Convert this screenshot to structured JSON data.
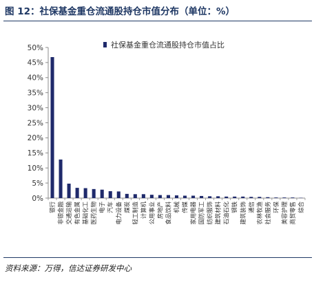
{
  "title": "图 12：社保基金重仓流通股持仓市值分布（单位：%）",
  "source": "资料来源：万得，信达证券研发中心",
  "colors": {
    "bar": "#1f2a6b",
    "axis": "#8c8c8c",
    "title": "#1f3864"
  },
  "chart_data": {
    "type": "bar",
    "title": "",
    "xlabel": "",
    "ylabel": "",
    "ylim": [
      0,
      50
    ],
    "yticks": [
      0,
      5,
      10,
      15,
      20,
      25,
      30,
      35,
      40,
      45,
      50
    ],
    "ytick_labels": [
      "0%",
      "5%",
      "10%",
      "15%",
      "20%",
      "25%",
      "30%",
      "35%",
      "40%",
      "45%",
      "50%"
    ],
    "grid": false,
    "legend_position": "top-center",
    "categories": [
      "银行",
      "非银金融",
      "交通运输",
      "有色金属",
      "基础化工",
      "医药生物",
      "电子",
      "汽车",
      "电力设备",
      "煤炭",
      "轻工制造",
      "计算机",
      "公用事业",
      "房地产",
      "食品饮料",
      "机械",
      "传媒",
      "家用电器",
      "国防军工",
      "纺织服饰",
      "建筑材料",
      "石油石化",
      "钢铁",
      "建筑装饰",
      "通信",
      "农林牧渔",
      "社会服务",
      "环保",
      "美容护理",
      "商贸零售",
      "综合"
    ],
    "series": [
      {
        "name": "社保基金重仓流通股持仓市值占比",
        "values": [
          46.8,
          12.8,
          4.8,
          3.4,
          3.3,
          3.0,
          2.8,
          2.3,
          2.2,
          1.4,
          1.3,
          1.3,
          1.1,
          1.0,
          1.0,
          0.9,
          0.8,
          0.8,
          0.7,
          0.6,
          0.6,
          0.5,
          0.5,
          0.5,
          0.4,
          0.4,
          0.3,
          0.2,
          0.2,
          0.2,
          0.1
        ]
      }
    ]
  }
}
